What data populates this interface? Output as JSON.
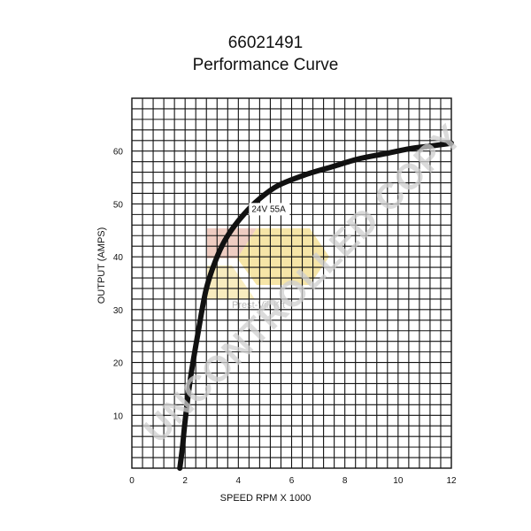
{
  "header": {
    "part_number": "66021491",
    "subtitle": "Performance Curve"
  },
  "chart_data": {
    "type": "line",
    "title": "66021491",
    "subtitle": "Performance Curve",
    "xlabel": "SPEED RPM X 1000",
    "ylabel": "OUTPUT (AMPS)",
    "xlim": [
      0,
      12
    ],
    "ylim": [
      0,
      70
    ],
    "x_ticks": [
      0,
      2,
      4,
      6,
      8,
      10,
      12
    ],
    "y_ticks": [
      10,
      20,
      30,
      40,
      50,
      60
    ],
    "grid": true,
    "series": [
      {
        "name": "24V 55A",
        "x": [
          1.8,
          1.9,
          2.0,
          2.2,
          2.5,
          2.8,
          3.2,
          3.6,
          4.2,
          4.8,
          5.5,
          6.5,
          7.5,
          8.5,
          9.5,
          10.5,
          11.3,
          12.0
        ],
        "y": [
          0,
          4,
          9,
          17,
          26,
          34,
          40,
          44,
          48,
          51,
          53.5,
          55.5,
          57,
          58.5,
          59.5,
          60.5,
          61,
          61.5
        ]
      }
    ],
    "annotations": [
      {
        "text": "24V 55A",
        "x": 4.5,
        "y": 48.5
      }
    ]
  },
  "watermark": {
    "text": "UNCONTROLLED COPY",
    "brand": "Prest-Vill Kft",
    "color": "#cfcfcf"
  },
  "colors": {
    "curve": "#111111",
    "grid": "#111111",
    "logo_red": "#e8b8a8",
    "logo_yellow": "#f3dc8a"
  }
}
